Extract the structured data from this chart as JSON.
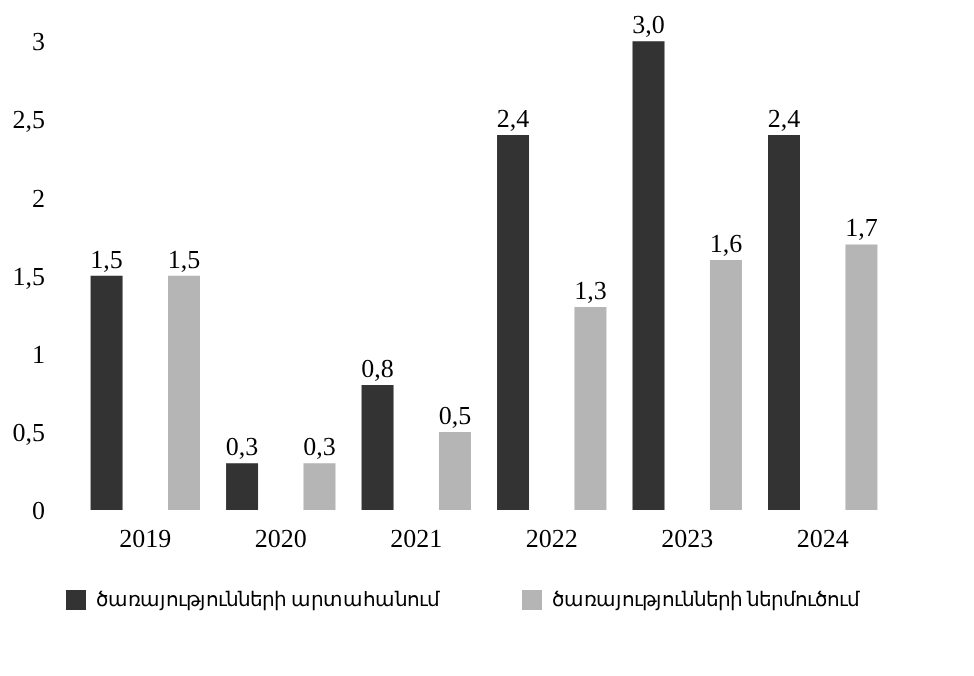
{
  "chart_data": {
    "type": "bar",
    "categories": [
      "2019",
      "2020",
      "2021",
      "2022",
      "2023",
      "2024"
    ],
    "series": [
      {
        "name": "ծառայությունների արտահանում",
        "color": "#333333",
        "values": [
          1.5,
          0.3,
          0.8,
          2.4,
          3.0,
          2.4
        ],
        "value_labels": [
          "1,5",
          "0,3",
          "0,8",
          "2,4",
          "3,0",
          "2,4"
        ]
      },
      {
        "name": "ծառայությունների ներմուծում",
        "color": "#b5b5b5",
        "values": [
          1.5,
          0.3,
          0.5,
          1.3,
          1.6,
          1.7
        ],
        "value_labels": [
          "1,5",
          "0,3",
          "0,5",
          "1,3",
          "1,6",
          "1,7"
        ]
      }
    ],
    "ylim": [
      0,
      3.2
    ],
    "yticks": [
      0,
      {
        "value": 0.5,
        "label": "0,5"
      },
      1,
      {
        "value": 1.5,
        "label": "1,5"
      },
      2,
      {
        "value": 2.5,
        "label": "2,5"
      },
      3
    ],
    "grid": false,
    "legend": "bottom"
  }
}
